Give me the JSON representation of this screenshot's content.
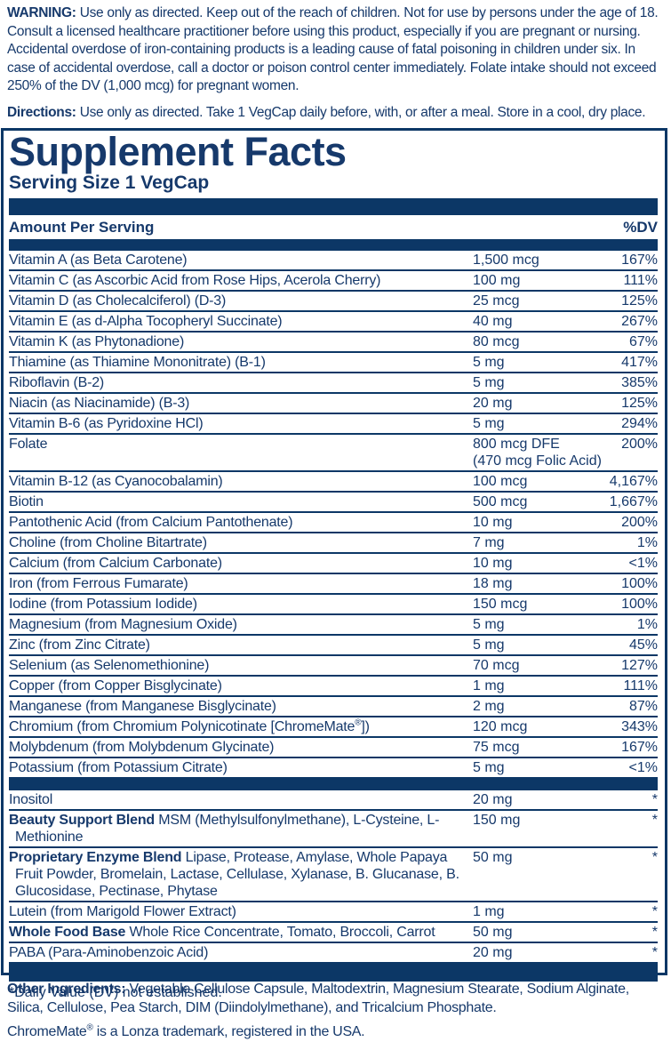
{
  "colors": {
    "navy_text": "#16396b",
    "navy_bar": "#0c3766",
    "background": "#ffffff"
  },
  "warning": {
    "label": "WARNING:",
    "text": "Use only as directed.  Keep out of the reach of children. Not for use by persons under the age of 18.  Consult a licensed healthcare practitioner before using this product, especially if you are pregnant or nursing.  Accidental overdose of iron-containing products is a leading cause of fatal poisoning in children under six.  In case of accidental overdose, call a doctor or poison control center immediately. Folate intake should not exceed 250% of the DV (1,000 mcg) for pregnant women."
  },
  "directions": {
    "label": "Directions:",
    "text": "Use only as directed. Take 1 VegCap daily before, with, or after a meal. Store in a cool, dry place."
  },
  "panel": {
    "title": "Supplement Facts",
    "serving_size": "Serving Size 1 VegCap",
    "header": {
      "amount_label": "Amount Per Serving",
      "dv_label": "%DV"
    },
    "rows": [
      {
        "name": "Vitamin A (as Beta Carotene)",
        "amount": "1,500 mcg",
        "dv": "167%"
      },
      {
        "name": "Vitamin C (as Ascorbic Acid from Rose Hips, Acerola Cherry)",
        "amount": "100 mg",
        "dv": "111%"
      },
      {
        "name": "Vitamin D (as Cholecalciferol) (D-3)",
        "amount": "25 mcg",
        "dv": "125%"
      },
      {
        "name": "Vitamin E (as d-Alpha Tocopheryl Succinate)",
        "amount": "40 mg",
        "dv": "267%"
      },
      {
        "name": "Vitamin K (as Phytonadione)",
        "amount": "80 mcg",
        "dv": "67%"
      },
      {
        "name": "Thiamine (as Thiamine Mononitrate) (B-1)",
        "amount": "5 mg",
        "dv": "417%"
      },
      {
        "name": "Riboflavin (B-2)",
        "amount": "5 mg",
        "dv": "385%"
      },
      {
        "name": "Niacin (as Niacinamide) (B-3)",
        "amount": "20 mg",
        "dv": "125%"
      },
      {
        "name": "Vitamin B-6 (as Pyridoxine HCl)",
        "amount": "5 mg",
        "dv": "294%"
      },
      {
        "name": "Folate",
        "amount": "800 mcg DFE",
        "amount2": "(470 mcg Folic Acid)",
        "dv": "200%"
      },
      {
        "name": "Vitamin B-12 (as Cyanocobalamin)",
        "amount": "100 mcg",
        "dv": "4,167%"
      },
      {
        "name": "Biotin",
        "amount": "500 mcg",
        "dv": "1,667%"
      },
      {
        "name": "Pantothenic Acid (from Calcium Pantothenate)",
        "amount": "10 mg",
        "dv": "200%"
      },
      {
        "name": "Choline (from Choline Bitartrate)",
        "amount": "7 mg",
        "dv": "1%"
      },
      {
        "name": "Calcium (from Calcium Carbonate)",
        "amount": "10 mg",
        "dv": "<1%"
      },
      {
        "name": "Iron (from Ferrous Fumarate)",
        "amount": "18 mg",
        "dv": "100%"
      },
      {
        "name": "Iodine (from Potassium Iodide)",
        "amount": "150 mcg",
        "dv": "100%"
      },
      {
        "name": "Magnesium (from Magnesium Oxide)",
        "amount": "5 mg",
        "dv": "1%"
      },
      {
        "name": "Zinc (from Zinc Citrate)",
        "amount": "5 mg",
        "dv": "45%"
      },
      {
        "name": "Selenium (as Selenomethionine)",
        "amount": "70 mcg",
        "dv": "127%"
      },
      {
        "name": "Copper (from Copper Bisglycinate)",
        "amount": "1 mg",
        "dv": "111%"
      },
      {
        "name": "Manganese (from Manganese Bisglycinate)",
        "amount": "2 mg",
        "dv": "87%"
      },
      {
        "name": "Chromium (from Chromium Polynicotinate [ChromeMate®])",
        "amount": "120 mcg",
        "dv": "343%"
      },
      {
        "name": "Molybdenum (from Molybdenum Glycinate)",
        "amount": "75 mcg",
        "dv": "167%"
      },
      {
        "name": "Potassium (from Potassium Citrate)",
        "amount": "5 mg",
        "dv": "<1%"
      }
    ],
    "secondary_rows": [
      {
        "name": "Inositol",
        "amount": "20 mg",
        "dv": "*"
      },
      {
        "bold": "Beauty Support Blend",
        "name": "MSM (Methylsulfonylmethane), L-Cysteine, L-Methionine",
        "amount": "150 mg",
        "dv": "*"
      },
      {
        "bold": "Proprietary Enzyme Blend",
        "name": "Lipase, Protease, Amylase, Whole Papaya Fruit Powder, Bromelain, Lactase, Cellulase, Xylanase, B. Glucanase, B. Glucosidase, Pectinase, Phytase",
        "amount": "50 mg",
        "dv": "*"
      },
      {
        "name": "Lutein (from Marigold Flower Extract)",
        "amount": "1 mg",
        "dv": "*"
      },
      {
        "bold": "Whole Food Base",
        "name": "Whole Rice Concentrate, Tomato, Broccoli, Carrot",
        "amount": "50 mg",
        "dv": "*"
      },
      {
        "name": "PABA (Para-Aminobenzoic Acid)",
        "amount": "20 mg",
        "dv": "*"
      }
    ],
    "footnote": "*Daily Value (DV) not established."
  },
  "other_ingredients": {
    "label": "Other Ingredients:",
    "text": "Vegetable Cellulose Capsule, Maltodextrin, Magnesium Stearate, Sodium Alginate, Silica, Cellulose, Pea Starch, DIM (Diindolylmethane), and Tricalcium Phosphate."
  },
  "trademark_note": "ChromeMate® is a Lonza trademark, registered in the USA."
}
